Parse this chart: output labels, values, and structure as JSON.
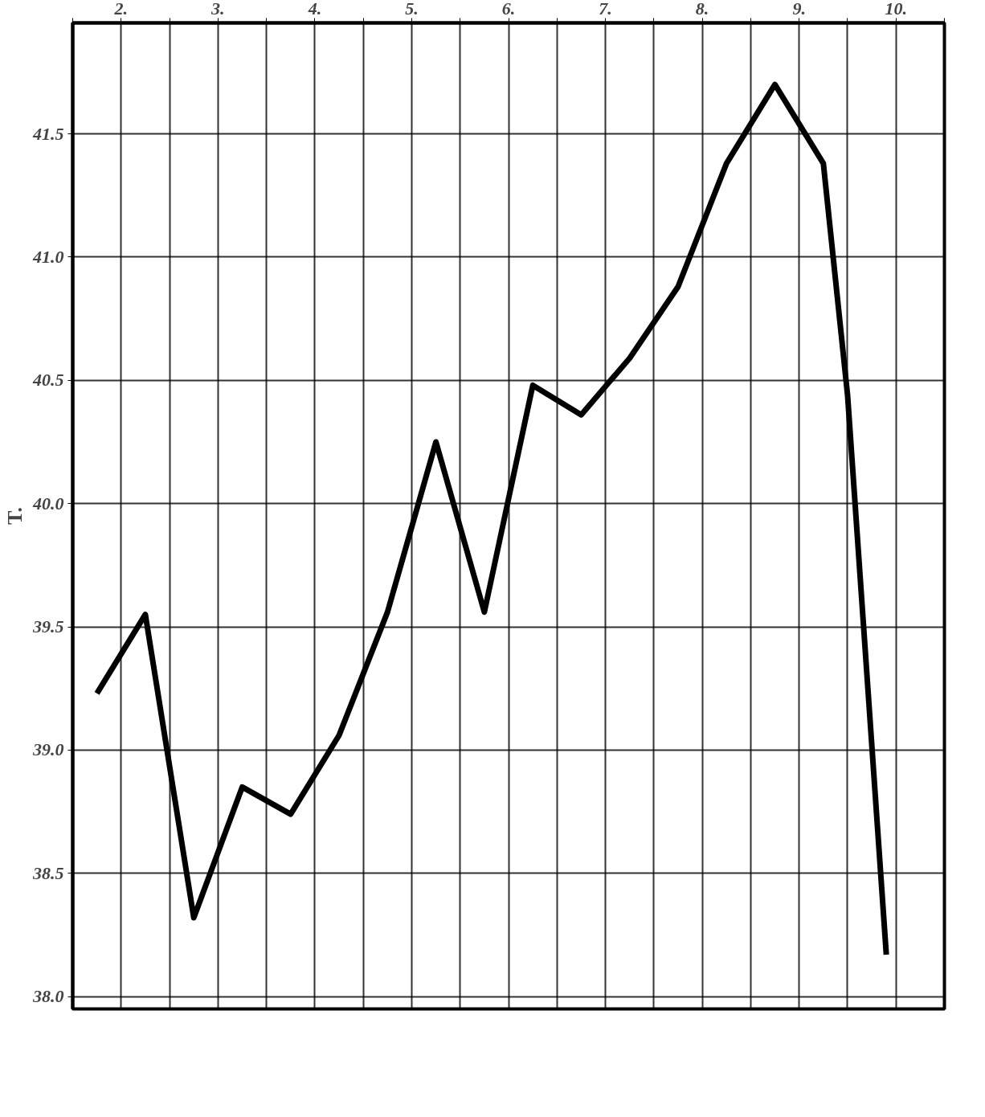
{
  "chart_data": {
    "type": "line",
    "ylabel": "T.",
    "x": [
      2.25,
      2.75,
      3.25,
      3.75,
      4.25,
      4.75,
      5.25,
      5.75,
      6.25,
      6.75,
      7.25,
      7.75,
      8.25,
      8.75,
      9.25,
      9.75,
      10.0,
      10.4
    ],
    "series": [
      {
        "color": "#000000",
        "values": [
          39.23,
          39.55,
          38.32,
          38.85,
          38.74,
          39.06,
          39.56,
          40.25,
          39.56,
          40.48,
          40.36,
          40.59,
          40.88,
          41.38,
          41.7,
          41.38,
          40.44,
          38.17
        ]
      }
    ],
    "xlim": [
      2,
      11
    ],
    "xticks": [
      {
        "value": 2,
        "label": null
      },
      {
        "value": 2.5,
        "label": "2."
      },
      {
        "value": 3,
        "label": null
      },
      {
        "value": 3.5,
        "label": "3."
      },
      {
        "value": 4,
        "label": null
      },
      {
        "value": 4.5,
        "label": "4."
      },
      {
        "value": 5,
        "label": null
      },
      {
        "value": 5.5,
        "label": "5."
      },
      {
        "value": 6,
        "label": null
      },
      {
        "value": 6.5,
        "label": "6."
      },
      {
        "value": 7,
        "label": null
      },
      {
        "value": 7.5,
        "label": "7."
      },
      {
        "value": 8,
        "label": null
      },
      {
        "value": 8.5,
        "label": "8."
      },
      {
        "value": 9,
        "label": null
      },
      {
        "value": 9.5,
        "label": "9."
      },
      {
        "value": 10,
        "label": null
      },
      {
        "value": 10.5,
        "label": "10."
      },
      {
        "value": 11,
        "label": null
      }
    ],
    "ylim": [
      37.95,
      41.95
    ],
    "yticks": [
      {
        "value": 38.0,
        "label": "38.0"
      },
      38.5,
      {
        "value": 39.0,
        "label": "39.0"
      },
      39.5,
      {
        "value": 40.0,
        "label": "40.0"
      },
      40.5,
      {
        "value": 41.0,
        "label": "41.0"
      },
      41.5
    ],
    "grid": true,
    "marker": "none",
    "line_style": "solid"
  }
}
